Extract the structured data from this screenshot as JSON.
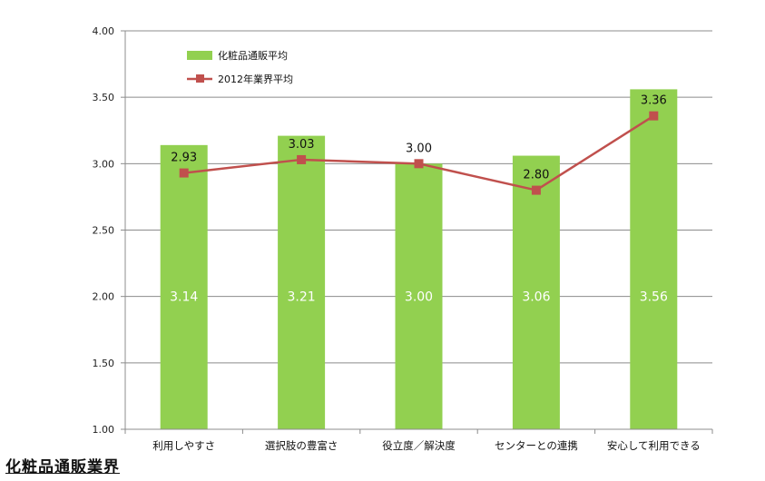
{
  "chart_data": {
    "type": "bar",
    "categories": [
      "利用しやすさ",
      "選択肢の豊富さ",
      "役立度／解決度",
      "センターとの連携",
      "安心して利用できる"
    ],
    "ylim": [
      1.0,
      4.0
    ],
    "yticks": [
      "1.00",
      "1.50",
      "2.00",
      "2.50",
      "3.00",
      "3.50",
      "4.00"
    ],
    "ytick_values": [
      1.0,
      1.5,
      2.0,
      2.5,
      3.0,
      3.5,
      4.0
    ],
    "grid": true,
    "legend_position": "top-left",
    "series": [
      {
        "name": "化粧品通販平均",
        "kind": "bar",
        "color": "#92d050",
        "values": [
          3.14,
          3.21,
          3.0,
          3.06,
          3.56
        ],
        "labels": [
          "3.14",
          "3.21",
          "3.00",
          "3.06",
          "3.56"
        ]
      },
      {
        "name": "2012年業界平均",
        "kind": "line",
        "color": "#c0504d",
        "values": [
          2.93,
          3.03,
          3.0,
          2.8,
          3.36
        ],
        "labels": [
          "2.93",
          "3.03",
          "3.00",
          "2.80",
          "3.36"
        ]
      }
    ]
  },
  "caption": "化粧品通販業界"
}
